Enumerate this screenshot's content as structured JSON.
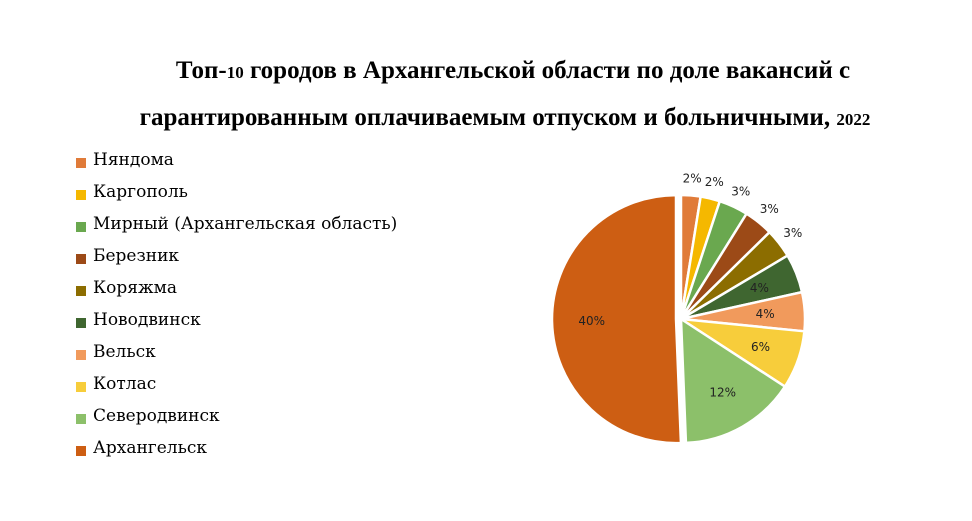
{
  "chart_data": {
    "type": "pie",
    "title_parts": {
      "line1_a": "Топ-",
      "line1_b": "10",
      "line1_c": " городов в Архангельской области по доле вакансий с",
      "line2_a": "гарантированным оплачиваемым отпуском и больничными, ",
      "line2_b": "2022"
    },
    "categories": [
      "Няндома",
      "Каргополь",
      "Мирный (Архангельская область)",
      "Березник",
      "Коряжма",
      "Новодвинск",
      "Вельск",
      "Котлас",
      "Северодвинск",
      "Архангельск"
    ],
    "values": [
      2,
      2,
      3,
      3,
      3,
      4,
      4,
      6,
      12,
      40
    ],
    "labels": [
      "2%",
      "2%",
      "3%",
      "3%",
      "3%",
      "4%",
      "4%",
      "6%",
      "12%",
      "40%"
    ],
    "colors": [
      "#e07b39",
      "#f5b800",
      "#6aa84f",
      "#9c4a17",
      "#8c6d00",
      "#3f6630",
      "#f19a5c",
      "#f7cd3b",
      "#8cc06a",
      "#cd5e13"
    ],
    "legend_position": "left"
  }
}
